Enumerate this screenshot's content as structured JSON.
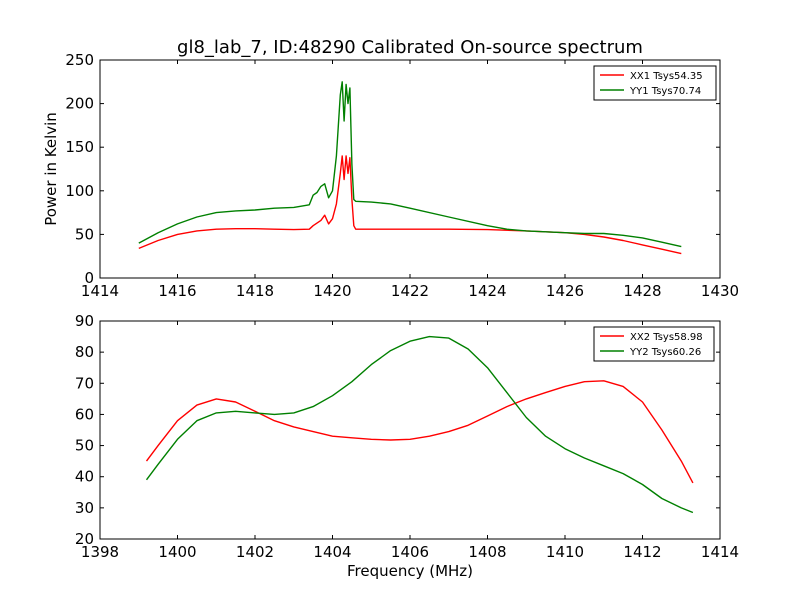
{
  "title": "gl8_lab_7, ID:48290 Calibrated On-source spectrum",
  "chart_data": [
    {
      "type": "line",
      "ylabel": "Power in Kelvin",
      "xlabel": "",
      "xlim": [
        1414,
        1430
      ],
      "ylim": [
        0,
        250
      ],
      "xticks": [
        1414,
        1416,
        1418,
        1420,
        1422,
        1424,
        1426,
        1428,
        1430
      ],
      "yticks": [
        0,
        50,
        100,
        150,
        200,
        250
      ],
      "legend": "top-right",
      "series": [
        {
          "name": "XX1 Tsys54.35",
          "color": "#ff0000",
          "x": [
            1415.0,
            1415.5,
            1416.0,
            1416.5,
            1417.0,
            1417.5,
            1418.0,
            1418.5,
            1419.0,
            1419.4,
            1419.5,
            1419.6,
            1419.7,
            1419.8,
            1419.9,
            1420.0,
            1420.1,
            1420.2,
            1420.25,
            1420.3,
            1420.35,
            1420.4,
            1420.45,
            1420.5,
            1420.55,
            1420.6,
            1421.0,
            1422.0,
            1423.0,
            1424.0,
            1425.0,
            1426.0,
            1426.5,
            1427.0,
            1427.5,
            1428.0,
            1428.5,
            1429.0
          ],
          "values": [
            34,
            43,
            50,
            54,
            56,
            56.5,
            56.5,
            56,
            55.5,
            56,
            60,
            63,
            66,
            72,
            62,
            68,
            85,
            120,
            140,
            113,
            140,
            120,
            138,
            90,
            60,
            56,
            56,
            56,
            56,
            55.5,
            54,
            52,
            50,
            47,
            43,
            38,
            33,
            28
          ]
        },
        {
          "name": "YY1 Tsys70.74",
          "color": "#008000",
          "x": [
            1415.0,
            1415.5,
            1416.0,
            1416.5,
            1417.0,
            1417.5,
            1418.0,
            1418.5,
            1419.0,
            1419.4,
            1419.5,
            1419.6,
            1419.7,
            1419.8,
            1419.9,
            1420.0,
            1420.1,
            1420.2,
            1420.25,
            1420.3,
            1420.35,
            1420.4,
            1420.45,
            1420.5,
            1420.55,
            1420.6,
            1421.0,
            1421.5,
            1422.0,
            1423.0,
            1424.0,
            1424.5,
            1425.0,
            1426.0,
            1426.5,
            1427.0,
            1427.5,
            1428.0,
            1428.5,
            1429.0
          ],
          "values": [
            40,
            52,
            62,
            70,
            75,
            77,
            78,
            80,
            81,
            84,
            95,
            98,
            105,
            108,
            92,
            100,
            140,
            210,
            225,
            180,
            222,
            200,
            218,
            130,
            90,
            88,
            87,
            85,
            80,
            70,
            60,
            56,
            54,
            52,
            51,
            51,
            49,
            46,
            41,
            36
          ]
        }
      ]
    },
    {
      "type": "line",
      "ylabel": "",
      "xlabel": "Frequency (MHz)",
      "xlim": [
        1398,
        1414
      ],
      "ylim": [
        20,
        90
      ],
      "xticks": [
        1398,
        1400,
        1402,
        1404,
        1406,
        1408,
        1410,
        1412,
        1414
      ],
      "yticks": [
        20,
        30,
        40,
        50,
        60,
        70,
        80,
        90
      ],
      "legend": "top-right",
      "series": [
        {
          "name": "XX2 Tsys58.98",
          "color": "#ff0000",
          "x": [
            1399.2,
            1399.5,
            1400.0,
            1400.5,
            1401.0,
            1401.5,
            1402.0,
            1402.5,
            1403.0,
            1403.5,
            1404.0,
            1404.5,
            1405.0,
            1405.5,
            1406.0,
            1406.5,
            1407.0,
            1407.5,
            1408.0,
            1408.5,
            1409.0,
            1409.5,
            1410.0,
            1410.5,
            1411.0,
            1411.5,
            1412.0,
            1412.5,
            1413.0,
            1413.3
          ],
          "values": [
            45,
            50,
            58,
            63,
            65,
            64,
            61,
            58,
            56,
            54.5,
            53,
            52.5,
            52,
            51.8,
            52,
            53,
            54.5,
            56.5,
            59.5,
            62.5,
            65,
            67,
            69,
            70.5,
            70.8,
            69,
            64,
            55,
            45,
            38
          ]
        },
        {
          "name": "YY2 Tsys60.26",
          "color": "#008000",
          "x": [
            1399.2,
            1399.5,
            1400.0,
            1400.5,
            1401.0,
            1401.5,
            1402.0,
            1402.5,
            1403.0,
            1403.5,
            1404.0,
            1404.5,
            1405.0,
            1405.5,
            1406.0,
            1406.5,
            1407.0,
            1407.5,
            1408.0,
            1408.5,
            1409.0,
            1409.5,
            1410.0,
            1410.5,
            1411.0,
            1411.5,
            1412.0,
            1412.5,
            1413.0,
            1413.3
          ],
          "values": [
            39,
            44,
            52,
            58,
            60.5,
            61,
            60.5,
            60,
            60.5,
            62.5,
            66,
            70.5,
            76,
            80.5,
            83.5,
            85,
            84.5,
            81,
            75,
            67,
            59,
            53,
            49,
            46,
            43.5,
            41,
            37.5,
            33,
            30,
            28.5
          ]
        }
      ]
    }
  ]
}
